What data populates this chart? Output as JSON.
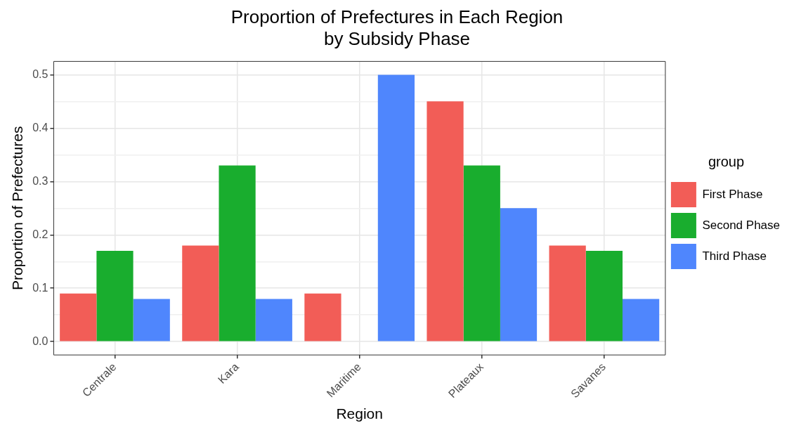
{
  "chart_data": {
    "type": "bar",
    "title": "Proportion of Prefectures in Each Region\nby Subsidy Phase",
    "xlabel": "Region",
    "ylabel": "Proportion of Prefectures",
    "legend_title": "group",
    "categories": [
      "Centrale",
      "Kara",
      "Maritime",
      "Plateaux",
      "Savanes"
    ],
    "series": [
      {
        "name": "First Phase",
        "color": "#f25d57",
        "values": [
          0.09,
          0.18,
          0.09,
          0.45,
          0.18
        ]
      },
      {
        "name": "Second Phase",
        "color": "#19ad2e",
        "values": [
          0.17,
          0.33,
          0.0,
          0.33,
          0.17
        ]
      },
      {
        "name": "Third Phase",
        "color": "#4f86fd",
        "values": [
          0.08,
          0.08,
          0.5,
          0.25,
          0.08
        ]
      }
    ],
    "ylim": [
      -0.025,
      0.525
    ],
    "yticks": [
      {
        "value": 0,
        "label": "0.0"
      },
      {
        "value": 0.05,
        "label": null
      },
      {
        "value": 0.1,
        "label": "0.1"
      },
      {
        "value": 0.15,
        "label": null
      },
      {
        "value": 0.2,
        "label": "0.2"
      },
      {
        "value": 0.25,
        "label": null
      },
      {
        "value": 0.3,
        "label": "0.3"
      },
      {
        "value": 0.35,
        "label": null
      },
      {
        "value": 0.4,
        "label": "0.4"
      },
      {
        "value": 0.45,
        "label": null
      },
      {
        "value": 0.5,
        "label": "0.5"
      }
    ],
    "grid": true,
    "legend": "right"
  }
}
